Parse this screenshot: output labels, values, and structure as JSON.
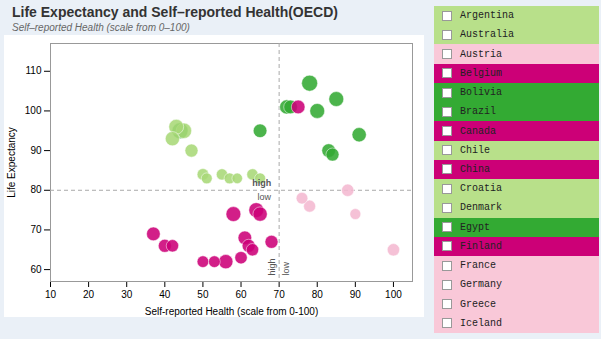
{
  "chart_data": {
    "type": "scatter",
    "title": "Life Expectancy and Self–reported Health(OECD)",
    "subtitle": "Self–reported Health (scale from 0–100)",
    "xlabel": "Self-reported Health (scale from 0-100)",
    "ylabel": "Life Expectancy",
    "x": [
      42,
      45,
      47,
      43,
      50,
      51,
      55,
      57,
      59,
      63,
      65,
      65,
      44,
      72,
      73,
      78,
      80,
      83,
      84,
      85,
      91,
      37,
      40,
      42,
      50,
      53,
      56,
      58,
      60,
      61,
      62,
      63,
      64,
      65,
      68,
      75,
      76,
      78,
      88,
      90,
      100
    ],
    "y": [
      93,
      95,
      90,
      96,
      84,
      83,
      84,
      83,
      83,
      84,
      83,
      95,
      95,
      101,
      101,
      107,
      100,
      90,
      89,
      103,
      94,
      69,
      66,
      66,
      62,
      62,
      62,
      74,
      63,
      68,
      66,
      65,
      75,
      74,
      67,
      101,
      78,
      76,
      80,
      74,
      65
    ],
    "sizes": [
      120,
      140,
      100,
      130,
      80,
      70,
      75,
      70,
      65,
      75,
      70,
      110,
      150,
      120,
      110,
      150,
      130,
      110,
      100,
      130,
      120,
      110,
      100,
      90,
      80,
      80,
      120,
      130,
      90,
      110,
      100,
      90,
      130,
      120,
      100,
      110,
      80,
      85,
      90,
      70,
      90
    ],
    "colors": [
      "#a8d878",
      "#a8d878",
      "#a8d878",
      "#a8d878",
      "#a8d878",
      "#a8d878",
      "#a8d878",
      "#a8d878",
      "#a8d878",
      "#a8d878",
      "#a8d878",
      "#33aa33",
      "#33aa33",
      "#33aa33",
      "#33aa33",
      "#33aa33",
      "#33aa33",
      "#33aa33",
      "#33aa33",
      "#33aa33",
      "#33aa33",
      "#cc0077",
      "#cc0077",
      "#cc0077",
      "#cc0077",
      "#cc0077",
      "#cc0077",
      "#cc0077",
      "#cc0077",
      "#cc0077",
      "#cc0077",
      "#cc0077",
      "#cc0077",
      "#cc0077",
      "#cc0077",
      "#cc0077",
      "#f4b8d0",
      "#f4b8d0",
      "#f4b8d0",
      "#f4b8d0",
      "#f4b8d0"
    ],
    "xlim": [
      10,
      105
    ],
    "ylim": [
      57,
      117
    ],
    "xticks": [
      10,
      20,
      30,
      40,
      50,
      60,
      70,
      80,
      90,
      100
    ],
    "yticks": [
      60,
      70,
      80,
      90,
      100,
      110
    ],
    "grid": false,
    "vline": 70,
    "hline": 80,
    "annotations": [
      {
        "text": "high",
        "x": 70,
        "y": 80,
        "position": "above-left"
      },
      {
        "text": "low",
        "x": 70,
        "y": 80,
        "position": "below-left"
      },
      {
        "text": "low",
        "x": 70,
        "y": 57,
        "position": "bottom-right"
      },
      {
        "text": "high",
        "x": 70,
        "y": 57,
        "position": "bottom-left"
      }
    ],
    "legend_items": [
      {
        "label": "Argentina",
        "color": "#b8e08a"
      },
      {
        "label": "Australia",
        "color": "#b8e08a"
      },
      {
        "label": "Austria",
        "color": "#f9c8d8"
      },
      {
        "label": "Belgium",
        "color": "#cc0077"
      },
      {
        "label": "Bolivia",
        "color": "#33aa33"
      },
      {
        "label": "Brazil",
        "color": "#33aa33"
      },
      {
        "label": "Canada",
        "color": "#cc0077"
      },
      {
        "label": "Chile",
        "color": "#b8e08a"
      },
      {
        "label": "China",
        "color": "#cc0077"
      },
      {
        "label": "Croatia",
        "color": "#b8e08a"
      },
      {
        "label": "Denmark",
        "color": "#b8e08a"
      },
      {
        "label": "Egypt",
        "color": "#33aa33"
      },
      {
        "label": "Finland",
        "color": "#cc0077"
      },
      {
        "label": "France",
        "color": "#f9c8d8"
      },
      {
        "label": "Germany",
        "color": "#f9c8d8"
      },
      {
        "label": "Greece",
        "color": "#f9c8d8"
      },
      {
        "label": "Iceland",
        "color": "#f9c8d8"
      }
    ]
  }
}
